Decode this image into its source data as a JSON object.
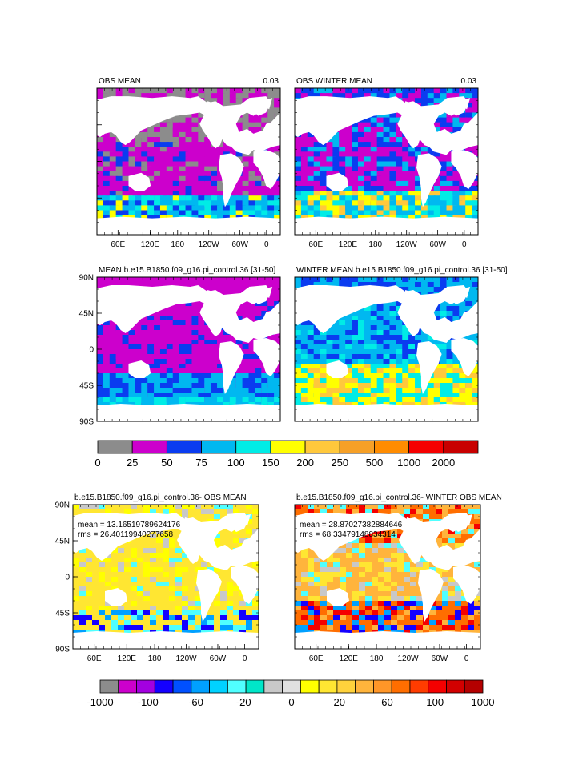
{
  "panels": [
    {
      "id": "obs-mean",
      "title_left": "OBS MEAN",
      "title_right": "0.03",
      "lat_labels": [
        "",
        "",
        "",
        "",
        ""
      ],
      "lon_labels": [
        "60E",
        "120E",
        "180",
        "120W",
        "60W",
        "0"
      ],
      "stats": []
    },
    {
      "id": "obs-winter-mean",
      "title_left": "OBS WINTER MEAN",
      "title_right": "0.03",
      "lat_labels": [],
      "lon_labels": [
        "60E",
        "120E",
        "180",
        "120W",
        "60W",
        "0"
      ],
      "stats": []
    },
    {
      "id": "model-mean",
      "title_left": "MEAN b.e15.B1850.f09_g16.pi_control.36 [31-50]",
      "title_right": "",
      "lat_labels": [
        "90N",
        "45N",
        "0",
        "45S",
        "90S"
      ],
      "lon_labels": [],
      "stats": []
    },
    {
      "id": "model-winter-mean",
      "title_left": "WINTER MEAN b.e15.B1850.f09_g16.pi_control.36 [31-50]",
      "title_right": "",
      "lat_labels": [],
      "lon_labels": [],
      "stats": []
    },
    {
      "id": "diff-mean",
      "title_left": "b.e15.B1850.f09_g16.pi_control.36- OBS MEAN",
      "title_right": "",
      "lat_labels": [
        "90N",
        "45N",
        "0",
        "45S",
        "90S"
      ],
      "lon_labels": [
        "60E",
        "120E",
        "180",
        "120W",
        "60W",
        "0"
      ],
      "stats": [
        "mean = 13.16519789624176",
        "rms = 26.40119940277658"
      ]
    },
    {
      "id": "diff-winter-mean",
      "title_left": "b.e15.B1850.f09_g16.pi_control.36- WINTER OBS MEAN",
      "title_right": "",
      "lat_labels": [],
      "lon_labels": [
        "60E",
        "120E",
        "180",
        "120W",
        "60W",
        "0"
      ],
      "stats": [
        "mean = 28.87027382884646",
        "rms = 68.33479148834314"
      ]
    }
  ],
  "colorbar_top": {
    "colors": [
      "#8c8c8c",
      "#cc00cc",
      "#0a3cf0",
      "#00b8f0",
      "#00ece6",
      "#ffff00",
      "#ffc83c",
      "#f6a027",
      "#ff8c00",
      "#f50000",
      "#c80000"
    ],
    "labels": [
      "0",
      "25",
      "50",
      "75",
      "100",
      "150",
      "200",
      "250",
      "500",
      "1000",
      "2000"
    ]
  },
  "colorbar_bottom": {
    "colors": [
      "#8c8c8c",
      "#cc00cc",
      "#a300e0",
      "#1400ff",
      "#0050ff",
      "#00a0ff",
      "#00d2ff",
      "#50ffff",
      "#00e6c8",
      "#c8c8c8",
      "#e0e0e0",
      "#ffff00",
      "#ffe632",
      "#ffd23c",
      "#ffb43c",
      "#ff9628",
      "#ff6e00",
      "#ff3c00",
      "#f50000",
      "#d20000",
      "#b40000"
    ],
    "labels": [
      "-1000",
      "-100",
      "-60",
      "-20",
      "0",
      "20",
      "60",
      "100",
      "1000"
    ]
  }
}
